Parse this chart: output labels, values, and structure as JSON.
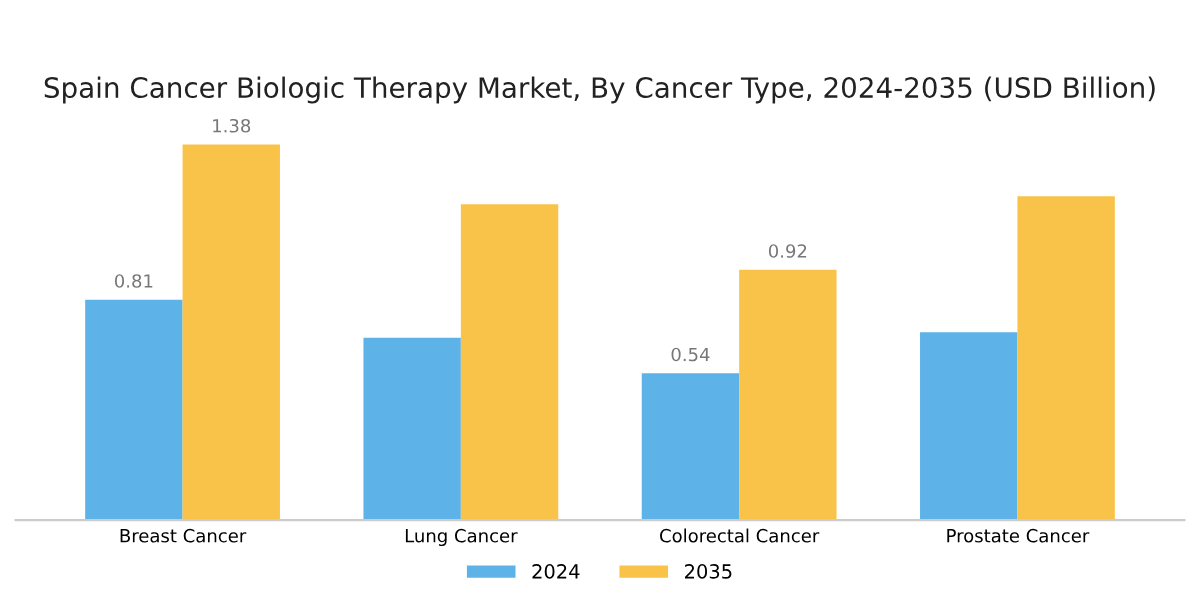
{
  "chart_data": {
    "type": "bar",
    "title": "Spain Cancer Biologic Therapy Market, By Cancer Type, 2024-2035 (USD Billion)",
    "categories": [
      "Breast Cancer",
      "Lung Cancer",
      "Colorectal Cancer",
      "Prostate Cancer"
    ],
    "series": [
      {
        "name": "2024",
        "color": "#5db3e8",
        "values": [
          0.81,
          0.67,
          0.54,
          0.69
        ],
        "value_labels": [
          "0.81",
          null,
          "0.54",
          null
        ]
      },
      {
        "name": "2035",
        "color": "#f9c34a",
        "values": [
          1.38,
          1.16,
          0.92,
          1.19
        ],
        "value_labels": [
          "1.38",
          null,
          "0.92",
          null
        ]
      }
    ],
    "legend": "bottom",
    "grid": false
  }
}
